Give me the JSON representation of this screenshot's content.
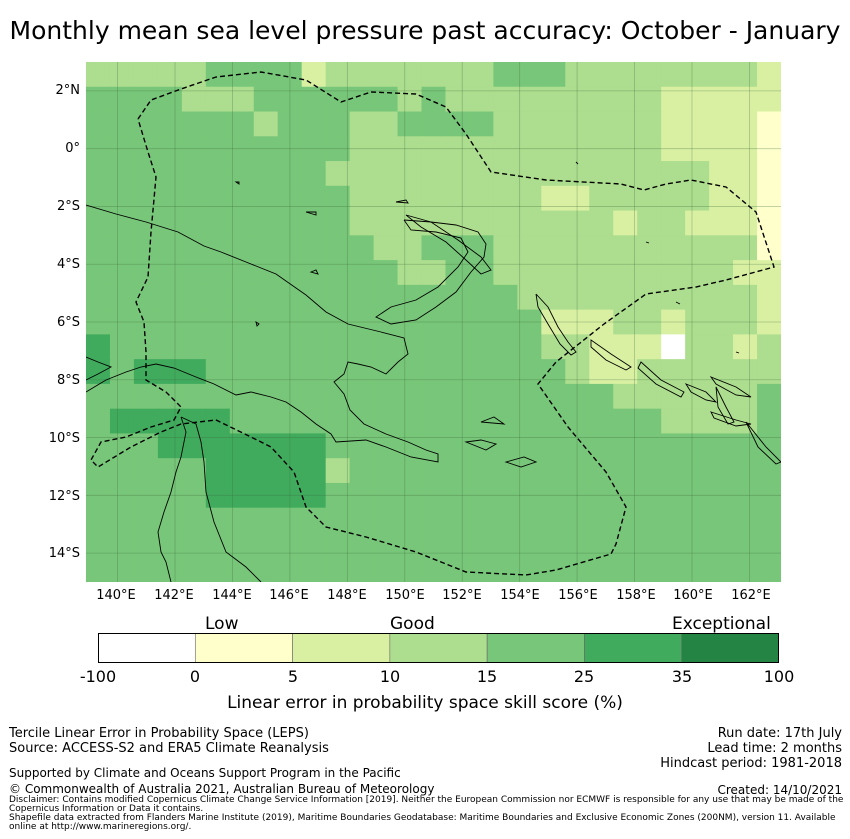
{
  "title": "Monthly mean sea level pressure past accuracy: October - January",
  "map": {
    "lat_labels": [
      "2°N",
      "0°",
      "2°S",
      "4°S",
      "6°S",
      "8°S",
      "10°S",
      "12°S",
      "14°S"
    ],
    "lon_labels": [
      "140°E",
      "142°E",
      "144°E",
      "146°E",
      "148°E",
      "150°E",
      "152°E",
      "154°E",
      "156°E",
      "158°E",
      "160°E",
      "162°E"
    ],
    "lon_range": [
      138.9,
      163.1
    ],
    "lat_range": [
      -15.0,
      3.0
    ],
    "region": "Papua New Guinea exclusive economic zone",
    "dominant_category": "Good",
    "bin_colors": [
      "#ffffff",
      "#ffffcc",
      "#d9f0a3",
      "#addd8e",
      "#78c679",
      "#41ab5d",
      "#238443"
    ]
  },
  "legend": {
    "categories": [
      "Low",
      "Good",
      "Exceptional"
    ],
    "ticks": [
      "-100",
      "0",
      "5",
      "10",
      "15",
      "25",
      "35",
      "100"
    ],
    "colors": [
      "#ffffff",
      "#ffffcc",
      "#d9f0a3",
      "#addd8e",
      "#78c679",
      "#41ab5d",
      "#238443"
    ],
    "label": "Linear error in probability space skill score (%)"
  },
  "info": {
    "product": "Tercile Linear Error in Probability Space (LEPS)",
    "source": "Source: ACCESS-S2 and ERA5 Climate Reanalysis",
    "run_date": "Run date: 17th July",
    "lead_time": "Lead time: 2 months",
    "hindcast": "Hindcast period: 1981-2018",
    "support": "Supported by Climate and Oceans Support Program in the Pacific",
    "copyright": "© Commonwealth of Australia 2021, Australian Bureau of Meteorology",
    "created": "Created: 14/10/2021",
    "disclaimer": "Disclaimer: Contains modified Copernicus Climate Change Service Information [2019]. Neither the European Commission nor ECMWF is responsible for any use that may be made of the Copernicus Information or Data it contains.",
    "shapefile": "Shapefile data extracted from Flanders Marine Institute (2019), Maritime Boundaries Geodatabase: Maritime Boundaries and Exclusive Economic Zones (200NM), version 11. Available online at http://www.marineregions.org/."
  }
}
